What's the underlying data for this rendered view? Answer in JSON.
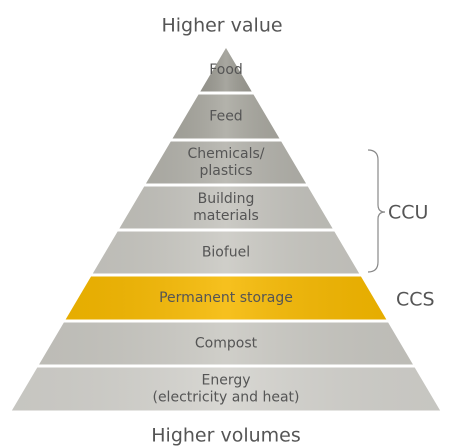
{
  "top_label": "Higher value",
  "bottom_label": "Higher volumes",
  "layers": [
    {
      "lines": [
        "Food"
      ],
      "color": "#9c9b93"
    },
    {
      "lines": [
        "Feed"
      ],
      "color": "#a9a8a0"
    },
    {
      "lines": [
        "Chemicals/",
        "plastics"
      ],
      "color": "#b3b2ab"
    },
    {
      "lines": [
        "Building",
        "materials"
      ],
      "color": "#c4c3bd"
    },
    {
      "lines": [
        "Biofuel"
      ],
      "color": "#c9c8c2"
    },
    {
      "lines": [
        "Permanent storage"
      ],
      "color": "#f5b800"
    },
    {
      "lines": [
        "Compost"
      ],
      "color": "#c9c8c2"
    },
    {
      "lines": [
        "Energy",
        "(electricity and heat)"
      ],
      "color": "#d3d2cd"
    }
  ],
  "groups": [
    {
      "label": "CCU"
    },
    {
      "label": "CCS"
    }
  ]
}
